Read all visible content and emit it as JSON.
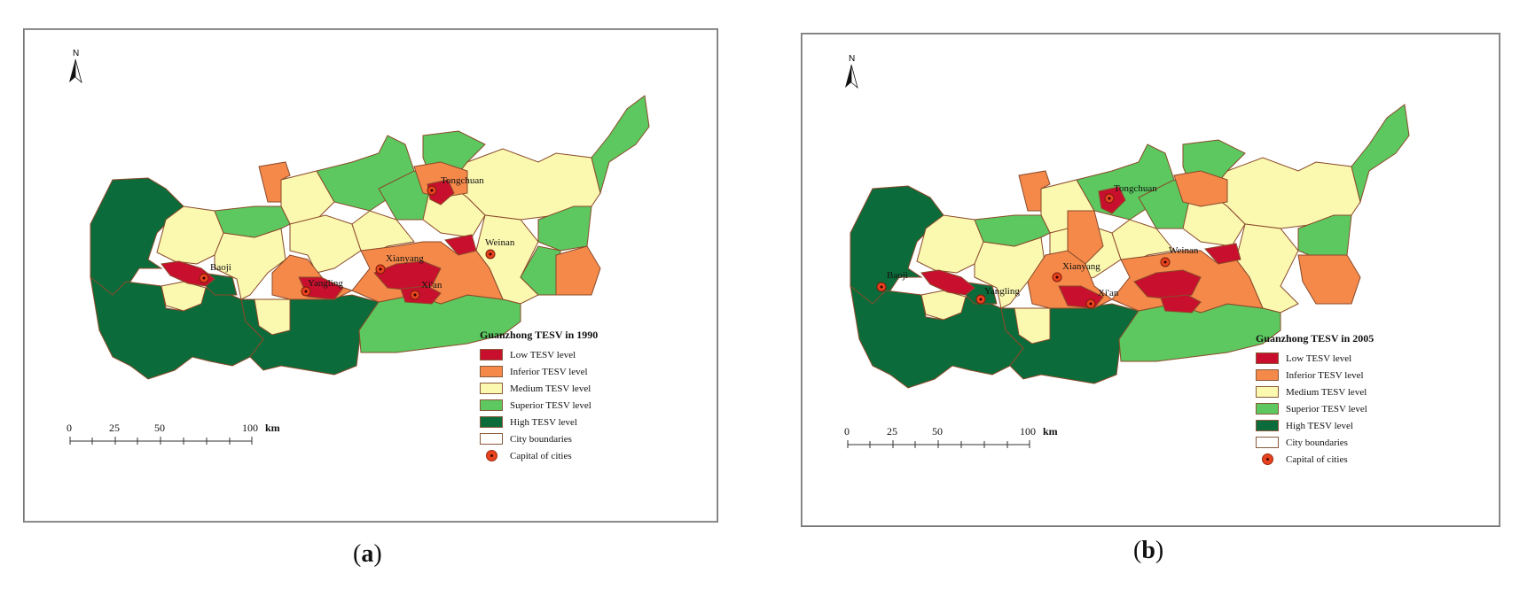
{
  "panels": [
    {
      "id": "a",
      "legend": {
        "title": "Guanzhong TESV in 1990",
        "items": [
          {
            "label": "Low TESV level",
            "color": "#c8102e"
          },
          {
            "label": "Inferior TESV level",
            "color": "#f4894a"
          },
          {
            "label": "Medium TESV level",
            "color": "#fbf8b0"
          },
          {
            "label": "Superior TESV level",
            "color": "#5cc85f"
          },
          {
            "label": "High TESV level",
            "color": "#0c6b3a"
          },
          {
            "label": "City boundaries",
            "color": "#ffffff"
          },
          {
            "label": "Capital of cities",
            "color": "#e8431f"
          }
        ]
      },
      "cities": [
        "Tongchuan",
        "Weinan",
        "Baoji",
        "Xianyang",
        "Yangling",
        "Xi'an"
      ],
      "scale": {
        "ticks": [
          "0",
          "25",
          "50",
          "100"
        ],
        "unit": "km"
      },
      "north": "N",
      "caption": {
        "open": "(",
        "letter": "a",
        "close": ")"
      }
    },
    {
      "id": "b",
      "legend": {
        "title": "Guanzhong TESV in 2005",
        "items": [
          {
            "label": "Low TESV level",
            "color": "#c8102e"
          },
          {
            "label": "Inferior TESV level",
            "color": "#f4894a"
          },
          {
            "label": "Medium TESV level",
            "color": "#fbf8b0"
          },
          {
            "label": "Superior TESV level",
            "color": "#5cc85f"
          },
          {
            "label": "High TESV level",
            "color": "#0c6b3a"
          },
          {
            "label": "City boundaries",
            "color": "#ffffff"
          },
          {
            "label": "Capital of cities",
            "color": "#e8431f"
          }
        ]
      },
      "cities": [
        "Tongchuan",
        "Weinan",
        "Baoji",
        "Xianyang",
        "Yangling",
        "Xi'an"
      ],
      "scale": {
        "ticks": [
          "0",
          "25",
          "50",
          "100"
        ],
        "unit": "km"
      },
      "north": "N",
      "caption": {
        "open": "(",
        "letter": "b",
        "close": ")"
      }
    }
  ]
}
